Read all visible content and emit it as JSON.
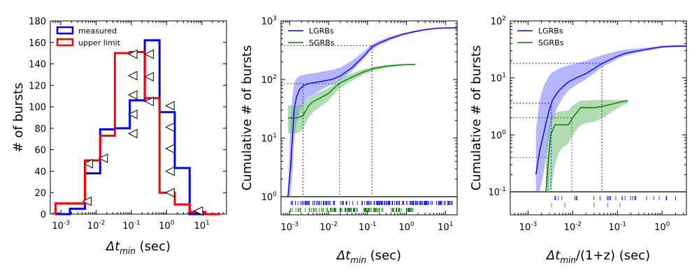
{
  "chart_data": [
    {
      "type": "histogram",
      "x_scale": "log",
      "xlim": [
        0.0005,
        50
      ],
      "ylim": [
        0,
        180
      ],
      "xlabel": "Δt_min (sec)",
      "xlabel_main": "Δt",
      "xlabel_sub": "min",
      "xlabel_unit": " (sec)",
      "ylabel": "# of bursts",
      "x_ticks": [
        0.001,
        0.01,
        0.1,
        1,
        10
      ],
      "x_tick_labels": [
        "10",
        "10",
        "10",
        "10",
        "10"
      ],
      "x_tick_exponents": [
        "-3",
        "-2",
        "-1",
        "0",
        "1"
      ],
      "y_ticks": [
        0,
        20,
        40,
        60,
        80,
        100,
        120,
        140,
        160,
        180
      ],
      "y_tick_labels": [
        "0",
        "20",
        "40",
        "60",
        "80",
        "100",
        "120",
        "140",
        "160",
        "180"
      ],
      "bin_edges": [
        0.0007,
        0.0018,
        0.0048,
        0.013,
        0.034,
        0.09,
        0.24,
        0.63,
        1.7,
        4.5,
        12.5,
        33
      ],
      "series": [
        {
          "name": "measured",
          "color": "#0000ff",
          "values": [
            0,
            5,
            38,
            79,
            80,
            106,
            162,
            95,
            43,
            0,
            0
          ]
        },
        {
          "name": "upper limit",
          "color": "#ff0000",
          "values": [
            10,
            10,
            50,
            73,
            150,
            151,
            108,
            20,
            9,
            2,
            0
          ]
        }
      ],
      "upper_limit_markers": [
        {
          "x": 0.0055,
          "y": 12
        },
        {
          "x": 0.006,
          "y": 47
        },
        {
          "x": 0.016,
          "y": 52
        },
        {
          "x": 0.11,
          "y": 75
        },
        {
          "x": 0.11,
          "y": 93
        },
        {
          "x": 0.11,
          "y": 111
        },
        {
          "x": 0.11,
          "y": 129
        },
        {
          "x": 0.11,
          "y": 149
        },
        {
          "x": 0.32,
          "y": 105
        },
        {
          "x": 0.32,
          "y": 128
        },
        {
          "x": 0.32,
          "y": 149
        },
        {
          "x": 1.25,
          "y": 20
        },
        {
          "x": 1.25,
          "y": 40
        },
        {
          "x": 1.25,
          "y": 61
        },
        {
          "x": 1.25,
          "y": 81
        },
        {
          "x": 1.25,
          "y": 101
        },
        {
          "x": 8,
          "y": 3
        }
      ],
      "legend": {
        "entries": [
          "measured",
          "upper limit"
        ],
        "loc": "upper left"
      }
    },
    {
      "type": "line",
      "x_scale": "log",
      "y_scale": "log",
      "xlim": [
        0.0006,
        20
      ],
      "ylim": [
        1,
        1000
      ],
      "xlabel": "Δt_min (sec)",
      "xlabel_main": "Δt",
      "xlabel_sub": "min",
      "xlabel_unit": " (sec)",
      "ylabel": "Cumulative # of bursts",
      "x_ticks": [
        0.001,
        0.01,
        0.1,
        1,
        10
      ],
      "x_tick_labels": [
        "10",
        "10",
        "10",
        "10",
        "10"
      ],
      "x_tick_exponents": [
        "-3",
        "-2",
        "-1",
        "0",
        "1"
      ],
      "y_ticks": [
        1,
        10,
        100,
        1000
      ],
      "y_tick_labels": [
        "10",
        "10",
        "10",
        "10"
      ],
      "y_tick_exponents": [
        "0",
        "1",
        "2",
        "3"
      ],
      "series": [
        {
          "name": "LGRBs",
          "color": "#0000ff",
          "x": [
            0.0009,
            0.00105,
            0.0012,
            0.0013,
            0.0015,
            0.0018,
            0.0022,
            0.003,
            0.005,
            0.008,
            0.012,
            0.02,
            0.04,
            0.08,
            0.13,
            0.2,
            0.4,
            0.8,
            1.5,
            3,
            6,
            10,
            20
          ],
          "y": [
            1,
            3,
            12,
            30,
            50,
            68,
            78,
            85,
            90,
            95,
            100,
            115,
            160,
            250,
            360,
            420,
            510,
            590,
            650,
            710,
            750,
            760,
            760
          ],
          "band_low": [
            1,
            1,
            3,
            10,
            18,
            28,
            38,
            50,
            60,
            72,
            82,
            98,
            140,
            225,
            330,
            385,
            475,
            560,
            625,
            690,
            735,
            750,
            755
          ],
          "band_high": [
            1,
            20,
            55,
            85,
            105,
            115,
            120,
            125,
            130,
            140,
            145,
            160,
            210,
            300,
            400,
            460,
            545,
            620,
            680,
            730,
            765,
            775,
            775
          ]
        },
        {
          "name": "SGRBs",
          "color": "#007a00",
          "x": [
            0.0009,
            0.0015,
            0.0022,
            0.003,
            0.004,
            0.006,
            0.01,
            0.015,
            0.02,
            0.04,
            0.08,
            0.15,
            0.3,
            0.6,
            1.0,
            1.7
          ],
          "y": [
            22,
            22,
            24,
            35,
            42,
            48,
            58,
            75,
            88,
            110,
            135,
            155,
            168,
            175,
            180,
            180
          ],
          "band_low": [
            12,
            12,
            14,
            22,
            28,
            34,
            44,
            60,
            72,
            95,
            122,
            143,
            160,
            170,
            176,
            177
          ],
          "band_high": [
            36,
            36,
            38,
            48,
            55,
            62,
            72,
            90,
            105,
            128,
            150,
            168,
            178,
            184,
            186,
            186
          ]
        }
      ],
      "reference_lines": [
        {
          "color": "#0000ff",
          "x": 0.0022,
          "y": 85
        },
        {
          "color": "#0000ff",
          "x": 0.13,
          "y": 380
        },
        {
          "color": "#007a00",
          "x": 0.019,
          "y": 85
        }
      ],
      "rug": [
        {
          "color": "#0000ff",
          "from": 0.0011,
          "to": 15
        },
        {
          "color": "#007a00",
          "from": 0.001,
          "to": 1.5
        }
      ],
      "legend": {
        "entries": [
          "LGRBs",
          "SGRBs"
        ],
        "loc": "upper left"
      }
    },
    {
      "type": "line",
      "x_scale": "log",
      "y_scale": "log",
      "xlim": [
        0.0004,
        3.5
      ],
      "ylim": [
        0.1,
        100
      ],
      "xlabel": "Δt_min/(1+z) (sec)",
      "xlabel_main": "Δt",
      "xlabel_sub": "min",
      "xlabel_unit": "/(1+z) (sec)",
      "ylabel": "Cumulative # of bursts",
      "x_ticks": [
        0.001,
        0.01,
        0.1,
        1
      ],
      "x_tick_labels": [
        "10",
        "10",
        "10",
        "10"
      ],
      "x_tick_exponents": [
        "-3",
        "-2",
        "-1",
        "0"
      ],
      "y_ticks": [
        0.1,
        1,
        10,
        100
      ],
      "y_tick_labels": [
        "10",
        "10",
        "10",
        "10"
      ],
      "y_tick_exponents": [
        "-1",
        "0",
        "1",
        "2"
      ],
      "series": [
        {
          "name": "LGRBs",
          "color": "#0000ff",
          "x": [
            0.0015,
            0.0018,
            0.0022,
            0.0026,
            0.003,
            0.0035,
            0.0045,
            0.006,
            0.008,
            0.012,
            0.02,
            0.03,
            0.045,
            0.07,
            0.1,
            0.15,
            0.3,
            0.6,
            1.0,
            2.0,
            3.5
          ],
          "y": [
            0.2,
            0.5,
            1.0,
            1.8,
            2.8,
            4.0,
            5.5,
            7.0,
            8.5,
            10,
            12,
            14.5,
            18,
            21,
            24,
            27,
            30,
            33,
            35,
            36,
            36
          ],
          "band_low": [
            0.1,
            0.1,
            0.2,
            0.5,
            1.0,
            1.8,
            3.0,
            4.5,
            6.0,
            7.5,
            9.5,
            12,
            15.5,
            18.5,
            21.5,
            24.5,
            28,
            31,
            33.5,
            35,
            35
          ],
          "band_high": [
            1.2,
            4,
            7,
            9,
            11,
            12.5,
            14,
            15.5,
            16.5,
            18,
            20,
            22.5,
            25,
            27.5,
            29.5,
            31.5,
            33,
            35,
            37,
            38,
            38
          ]
        },
        {
          "name": "SGRBs",
          "color": "#007a00",
          "x": [
            0.0025,
            0.0028,
            0.0032,
            0.004,
            0.005,
            0.006,
            0.008,
            0.01,
            0.015,
            0.02,
            0.03,
            0.05,
            0.08,
            0.12,
            0.17
          ],
          "y": [
            0.1,
            0.3,
            1.0,
            1.5,
            1.5,
            1.5,
            1.5,
            2.0,
            3.0,
            3.0,
            3.0,
            3.2,
            3.5,
            3.8,
            4.0
          ],
          "band_low": [
            0.1,
            0.1,
            0.1,
            0.3,
            0.5,
            0.6,
            0.7,
            1.0,
            1.5,
            1.6,
            1.7,
            2.0,
            2.6,
            3.2,
            3.6
          ],
          "band_high": [
            0.6,
            1.2,
            2.0,
            2.4,
            2.6,
            2.6,
            2.7,
            3.3,
            4.0,
            4.0,
            4.1,
            4.1,
            4.1,
            4.1,
            4.1
          ]
        }
      ],
      "reference_lines": [
        {
          "color": "#0000ff",
          "x": 0.0033,
          "y": 3.6
        },
        {
          "color": "#0000ff",
          "x": 0.045,
          "y": 18
        },
        {
          "color": "#007a00",
          "x": 0.0028,
          "y": 0.4
        },
        {
          "color": "#007a00",
          "x": 0.0095,
          "y": 2.0
        }
      ],
      "rug": [
        {
          "color": "#0000ff",
          "from": 0.004,
          "to": 2.0
        },
        {
          "color": "#007a00",
          "from": 0.0015,
          "to": 0.15
        }
      ],
      "legend": {
        "entries": [
          "LGRBs",
          "SGRBs"
        ],
        "loc": "upper left"
      }
    }
  ]
}
